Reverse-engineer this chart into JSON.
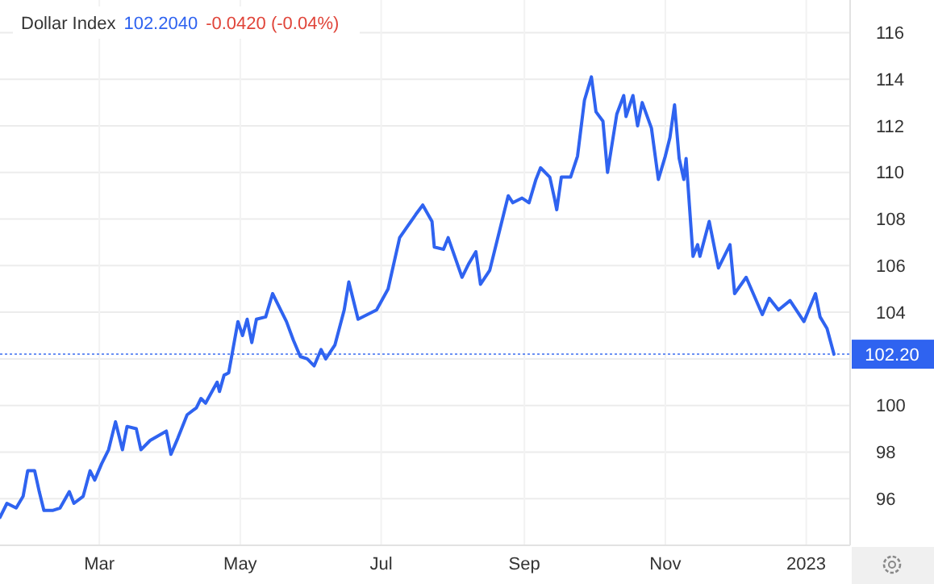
{
  "chart_data": {
    "type": "line",
    "title": "Dollar Index",
    "annotations": [
      "102.2040",
      "-0.0420 (-0.04%)"
    ],
    "xlim": [
      "2022-01-17",
      "2023-01-20"
    ],
    "xticks": [
      {
        "value": "2022-03-01",
        "label": "Mar"
      },
      {
        "value": "2022-05-01",
        "label": "May"
      },
      {
        "value": "2022-07-01",
        "label": "Jul"
      },
      {
        "value": "2022-09-01",
        "label": "Sep"
      },
      {
        "value": "2022-11-01",
        "label": "Nov"
      },
      {
        "value": "2023-01-01",
        "label": "2023"
      }
    ],
    "ylim": [
      94,
      117.4
    ],
    "yticks": [
      96,
      98,
      100,
      {
        "value": 102,
        "label": null
      },
      104,
      106,
      108,
      110,
      112,
      114,
      116
    ],
    "grid": true,
    "marker": "none",
    "line_style": "solid",
    "ref_lines": [
      {
        "axis": "y",
        "value": 102.2,
        "label": "102.20",
        "color": "#2f63f0",
        "line_style": "dotted"
      }
    ],
    "series": [
      {
        "color": "#2f63f0",
        "x": [
          "2022-01-17",
          "2022-01-20",
          "2022-01-24",
          "2022-01-27",
          "2022-01-29",
          "2022-02-01",
          "2022-02-03",
          "2022-02-05",
          "2022-02-09",
          "2022-02-12",
          "2022-02-16",
          "2022-02-18",
          "2022-02-22",
          "2022-02-25",
          "2022-02-27",
          "2022-03-02",
          "2022-03-05",
          "2022-03-08",
          "2022-03-11",
          "2022-03-13",
          "2022-03-17",
          "2022-03-19",
          "2022-03-23",
          "2022-03-30",
          "2022-04-01",
          "2022-04-04",
          "2022-04-08",
          "2022-04-12",
          "2022-04-14",
          "2022-04-16",
          "2022-04-21",
          "2022-04-22",
          "2022-04-24",
          "2022-04-26",
          "2022-04-30",
          "2022-05-02",
          "2022-05-04",
          "2022-05-06",
          "2022-05-08",
          "2022-05-12",
          "2022-05-15",
          "2022-05-19",
          "2022-05-21",
          "2022-05-24",
          "2022-05-27",
          "2022-05-30",
          "2022-06-02",
          "2022-06-05",
          "2022-06-07",
          "2022-06-11",
          "2022-06-15",
          "2022-06-17",
          "2022-06-21",
          "2022-06-29",
          "2022-07-04",
          "2022-07-09",
          "2022-07-16",
          "2022-07-19",
          "2022-07-23",
          "2022-07-24",
          "2022-07-28",
          "2022-07-30",
          "2022-08-05",
          "2022-08-08",
          "2022-08-11",
          "2022-08-13",
          "2022-08-17",
          "2022-08-19",
          "2022-08-23",
          "2022-08-25",
          "2022-08-27",
          "2022-08-31",
          "2022-09-03",
          "2022-09-06",
          "2022-09-08",
          "2022-09-12",
          "2022-09-14",
          "2022-09-15",
          "2022-09-17",
          "2022-09-21",
          "2022-09-24",
          "2022-09-27",
          "2022-09-30",
          "2022-10-02",
          "2022-10-05",
          "2022-10-07",
          "2022-10-11",
          "2022-10-14",
          "2022-10-15",
          "2022-10-18",
          "2022-10-20",
          "2022-10-22",
          "2022-10-26",
          "2022-10-29",
          "2022-11-01",
          "2022-11-03",
          "2022-11-05",
          "2022-11-07",
          "2022-11-09",
          "2022-11-10",
          "2022-11-13",
          "2022-11-15",
          "2022-11-16",
          "2022-11-20",
          "2022-11-24",
          "2022-11-29",
          "2022-12-01",
          "2022-12-06",
          "2022-12-13",
          "2022-12-16",
          "2022-12-20",
          "2022-12-25",
          "2022-12-31",
          "2023-01-05",
          "2023-01-07",
          "2023-01-10",
          "2023-01-13"
        ],
        "values": [
          95.2,
          95.8,
          95.6,
          96.1,
          97.2,
          97.2,
          96.3,
          95.5,
          95.5,
          95.6,
          96.3,
          95.8,
          96.1,
          97.2,
          96.8,
          97.5,
          98.1,
          99.3,
          98.1,
          99.1,
          99.0,
          98.1,
          98.5,
          98.9,
          97.9,
          98.6,
          99.6,
          99.9,
          100.3,
          100.1,
          101.0,
          100.6,
          101.3,
          101.4,
          103.6,
          103.0,
          103.7,
          102.7,
          103.7,
          103.8,
          104.8,
          104.0,
          103.6,
          102.8,
          102.1,
          102.0,
          101.7,
          102.4,
          102.0,
          102.6,
          104.1,
          105.3,
          103.7,
          104.1,
          105.0,
          107.2,
          108.2,
          108.6,
          107.9,
          106.8,
          106.7,
          107.2,
          105.5,
          106.1,
          106.6,
          105.2,
          105.8,
          106.6,
          108.2,
          109.0,
          108.7,
          108.9,
          108.7,
          109.7,
          110.2,
          109.8,
          108.9,
          108.4,
          109.8,
          109.8,
          110.7,
          113.1,
          114.1,
          112.6,
          112.2,
          110.0,
          112.5,
          113.3,
          112.4,
          113.3,
          112.0,
          113.0,
          111.9,
          109.7,
          110.7,
          111.5,
          112.9,
          110.6,
          109.7,
          110.6,
          106.4,
          106.9,
          106.4,
          107.9,
          105.9,
          106.9,
          104.8,
          105.5,
          103.9,
          104.6,
          104.1,
          104.5,
          103.6,
          104.8,
          103.8,
          103.3,
          102.2
        ]
      }
    ]
  }
}
